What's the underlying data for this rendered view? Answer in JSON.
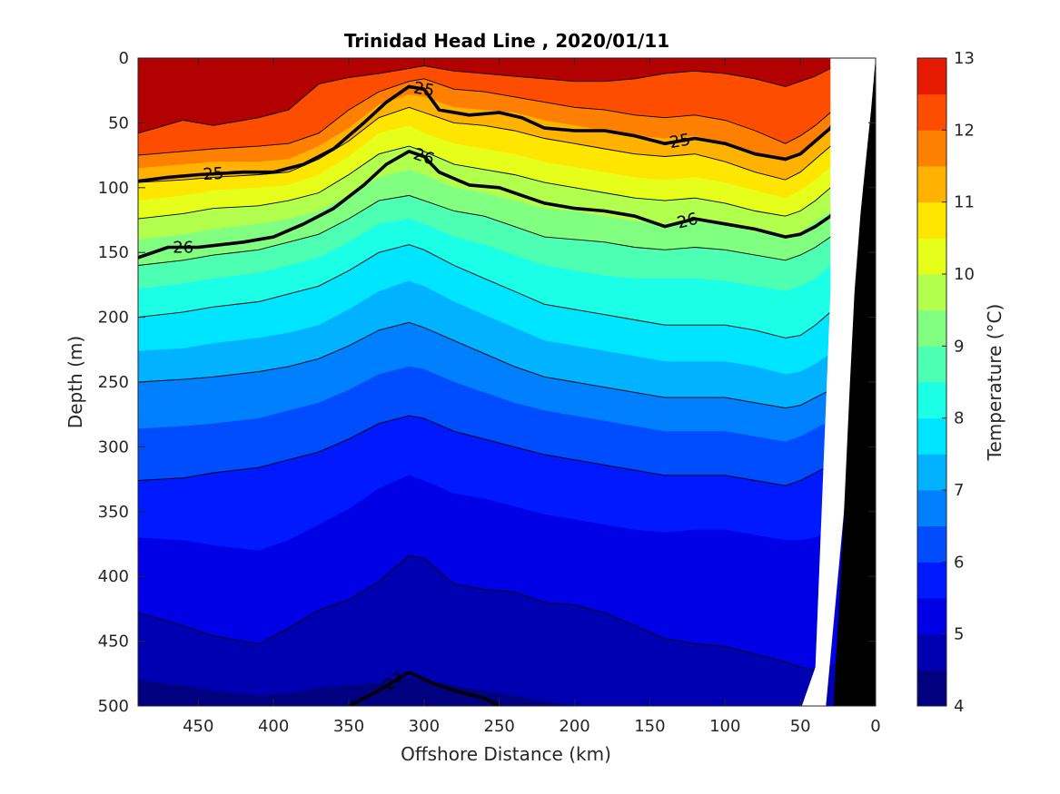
{
  "chart_data": {
    "type": "heatmap",
    "subtype": "filled contour section",
    "title": "Trinidad Head Line , 2020/01/11",
    "xlabel": "Offshore Distance (km)",
    "ylabel": "Depth (m)",
    "xlim": [
      490,
      0
    ],
    "ylim": [
      0,
      500
    ],
    "x_reversed": true,
    "y_reversed": true,
    "x_ticks": [
      450,
      400,
      350,
      300,
      250,
      200,
      150,
      100,
      50,
      0
    ],
    "y_ticks": [
      0,
      50,
      100,
      150,
      200,
      250,
      300,
      350,
      400,
      450,
      500
    ],
    "colorbar": {
      "label": "Temperature (°C)",
      "ticks": [
        4,
        5,
        6,
        7,
        8,
        9,
        10,
        11,
        12,
        13
      ],
      "levels": [
        4,
        4.5,
        5,
        5.5,
        6,
        6.5,
        7,
        7.5,
        8,
        8.5,
        9,
        9.5,
        10,
        10.5,
        11,
        11.5,
        12,
        12.5,
        13
      ],
      "colors": [
        "#000080",
        "#0000b3",
        "#0000e6",
        "#0019ff",
        "#004cff",
        "#0080ff",
        "#00b2ff",
        "#00e5ff",
        "#1affe6",
        "#4dffb2",
        "#80ff80",
        "#b3ff4d",
        "#e6ff1a",
        "#ffe600",
        "#ffb300",
        "#ff8000",
        "#ff4d00",
        "#e61a00",
        "#b30000"
      ]
    },
    "isotherm_profiles": {
      "x_km": [
        490,
        460,
        440,
        410,
        390,
        370,
        350,
        330,
        310,
        300,
        280,
        260,
        240,
        220,
        200,
        180,
        160,
        140,
        120,
        100,
        80,
        60,
        50,
        40,
        30,
        20
      ],
      "temperature_levels": [
        12.5,
        12,
        11.5,
        11,
        10.5,
        10,
        9.5,
        9,
        8.5,
        8,
        7.5,
        7,
        6.5,
        6,
        5.5,
        5,
        4.5
      ],
      "depths_m": [
        [
          58,
          48,
          52,
          46,
          40,
          20,
          15,
          12,
          8,
          6,
          10,
          12,
          14,
          16,
          18,
          18,
          16,
          12,
          10,
          12,
          16,
          22,
          18,
          14,
          8,
          4
        ],
        [
          75,
          72,
          70,
          68,
          66,
          58,
          40,
          26,
          18,
          16,
          24,
          26,
          30,
          34,
          38,
          40,
          44,
          46,
          44,
          48,
          56,
          66,
          60,
          52,
          42,
          30
        ],
        [
          85,
          82,
          80,
          80,
          78,
          68,
          54,
          36,
          28,
          30,
          38,
          40,
          42,
          48,
          52,
          56,
          60,
          62,
          60,
          66,
          74,
          80,
          74,
          64,
          54,
          44
        ],
        [
          96,
          94,
          92,
          90,
          88,
          78,
          64,
          46,
          38,
          42,
          50,
          52,
          56,
          62,
          66,
          70,
          74,
          76,
          74,
          80,
          88,
          94,
          88,
          78,
          68,
          58
        ],
        [
          110,
          106,
          102,
          100,
          98,
          90,
          76,
          58,
          52,
          58,
          66,
          70,
          74,
          80,
          84,
          88,
          92,
          94,
          92,
          96,
          102,
          108,
          102,
          94,
          84,
          74
        ],
        [
          124,
          120,
          116,
          114,
          110,
          104,
          90,
          74,
          68,
          72,
          82,
          86,
          90,
          96,
          100,
          104,
          108,
          110,
          108,
          112,
          118,
          122,
          118,
          110,
          100,
          92
        ],
        [
          140,
          136,
          132,
          128,
          124,
          118,
          106,
          92,
          86,
          90,
          100,
          104,
          110,
          116,
          118,
          122,
          126,
          128,
          126,
          128,
          134,
          138,
          134,
          126,
          118,
          110
        ],
        [
          160,
          156,
          152,
          148,
          142,
          136,
          124,
          110,
          106,
          110,
          118,
          122,
          130,
          138,
          140,
          142,
          146,
          148,
          146,
          148,
          152,
          156,
          152,
          146,
          138,
          130
        ],
        [
          178,
          174,
          170,
          166,
          160,
          154,
          142,
          128,
          124,
          128,
          138,
          144,
          152,
          160,
          164,
          168,
          170,
          170,
          170,
          172,
          176,
          180,
          176,
          170,
          160,
          150
        ],
        [
          200,
          196,
          192,
          188,
          182,
          176,
          164,
          150,
          144,
          148,
          160,
          170,
          180,
          190,
          194,
          198,
          202,
          206,
          206,
          206,
          210,
          216,
          214,
          206,
          196,
          186
        ],
        [
          226,
          224,
          220,
          216,
          212,
          206,
          194,
          180,
          172,
          176,
          188,
          198,
          208,
          218,
          222,
          226,
          230,
          234,
          234,
          234,
          238,
          244,
          242,
          236,
          228,
          220
        ],
        [
          250,
          248,
          246,
          242,
          238,
          232,
          222,
          210,
          204,
          208,
          218,
          228,
          238,
          246,
          250,
          254,
          258,
          262,
          262,
          262,
          266,
          270,
          268,
          262,
          256,
          248
        ],
        [
          286,
          284,
          282,
          278,
          272,
          266,
          256,
          244,
          238,
          240,
          250,
          258,
          266,
          272,
          276,
          280,
          284,
          288,
          288,
          288,
          292,
          296,
          292,
          286,
          280,
          274
        ],
        [
          326,
          324,
          320,
          316,
          310,
          304,
          294,
          282,
          276,
          278,
          288,
          294,
          300,
          306,
          310,
          314,
          318,
          322,
          322,
          322,
          326,
          330,
          326,
          320,
          314,
          308
        ],
        [
          370,
          372,
          376,
          380,
          372,
          360,
          348,
          332,
          322,
          326,
          336,
          340,
          346,
          352,
          356,
          360,
          364,
          366,
          364,
          364,
          368,
          372,
          372,
          370,
          364,
          358
        ],
        [
          428,
          438,
          446,
          452,
          440,
          426,
          418,
          404,
          384,
          386,
          406,
          410,
          412,
          420,
          422,
          428,
          438,
          448,
          452,
          454,
          460,
          466,
          470,
          472,
          470,
          466
        ],
        [
          480,
          484,
          488,
          492,
          490,
          486,
          484,
          482,
          478,
          480,
          484,
          488,
          492,
          496,
          500,
          500,
          500,
          500,
          500,
          500,
          500,
          500,
          500,
          500,
          500,
          500
        ]
      ]
    },
    "density_contours": [
      {
        "label": "25",
        "x_km": [
          490,
          470,
          450,
          420,
          400,
          380,
          360,
          340,
          325,
          310,
          300,
          290,
          270,
          250,
          235,
          220,
          200,
          180,
          160,
          140,
          120,
          100,
          80,
          60,
          50,
          40,
          30,
          20
        ],
        "depth_m": [
          95,
          92,
          90,
          88,
          88,
          82,
          70,
          50,
          34,
          22,
          24,
          40,
          44,
          42,
          46,
          54,
          56,
          56,
          60,
          66,
          62,
          66,
          74,
          78,
          74,
          64,
          54,
          36
        ],
        "label_positions_km": [
          440,
          300,
          130
        ]
      },
      {
        "label": "26",
        "x_km": [
          490,
          470,
          450,
          420,
          400,
          380,
          360,
          340,
          325,
          310,
          300,
          290,
          270,
          250,
          235,
          220,
          200,
          180,
          160,
          140,
          120,
          100,
          80,
          60,
          50,
          40,
          30,
          20
        ],
        "depth_m": [
          154,
          146,
          146,
          142,
          138,
          128,
          116,
          98,
          82,
          72,
          76,
          88,
          98,
          100,
          106,
          112,
          116,
          118,
          122,
          130,
          124,
          128,
          132,
          138,
          136,
          130,
          122,
          108
        ],
        "label_positions_km": [
          460,
          300,
          125
        ]
      },
      {
        "label": "27",
        "x_km": [
          350,
          330,
          310,
          295,
          280,
          260,
          250
        ],
        "depth_m": [
          500,
          488,
          474,
          482,
          488,
          494,
          500
        ],
        "label_positions_km": [
          320
        ]
      }
    ],
    "bathymetry_profile": {
      "x_km": [
        0,
        3,
        7,
        10,
        14,
        17,
        21,
        28,
        40,
        50,
        49,
        33
      ],
      "depth_m": [
        0,
        40,
        85,
        120,
        180,
        250,
        350,
        500,
        500,
        500,
        500,
        500
      ]
    }
  }
}
